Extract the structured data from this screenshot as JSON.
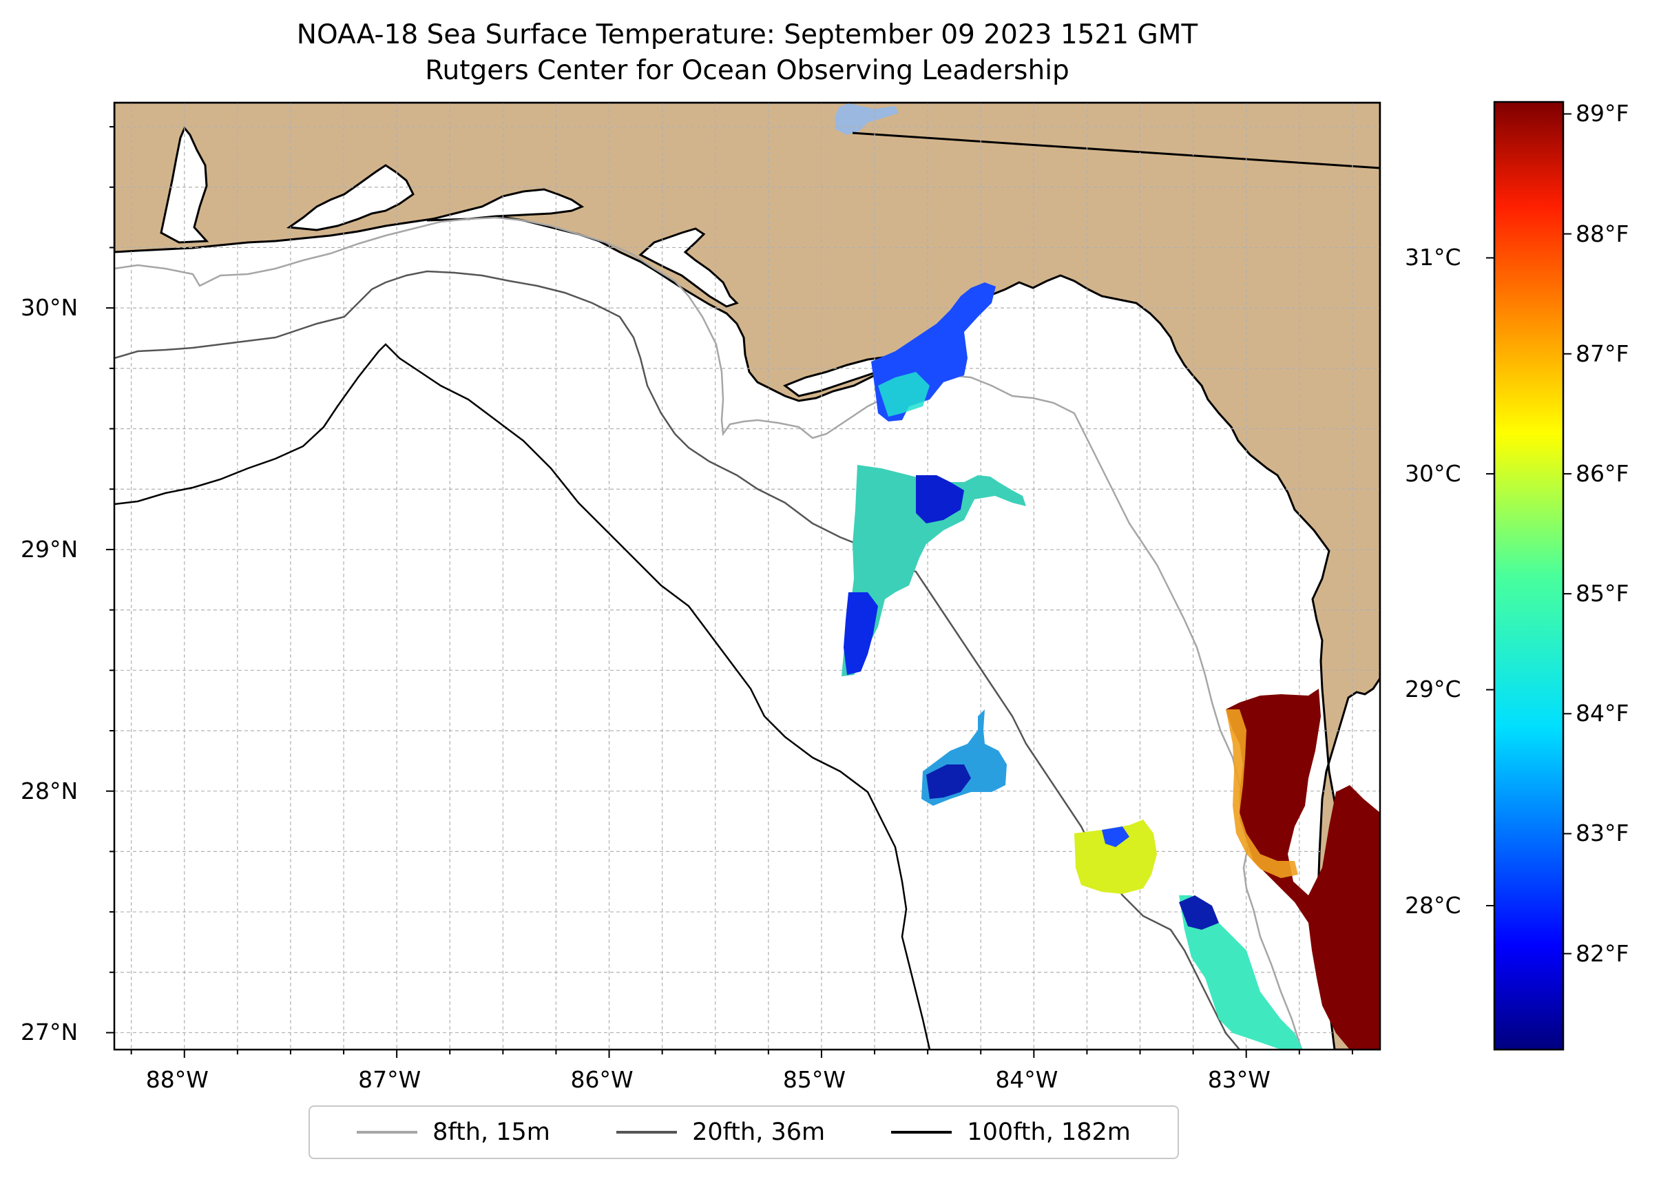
{
  "title": {
    "line1": "NOAA-18 Sea Surface Temperature: September 09 2023 1521 GMT",
    "line2": "Rutgers Center for Ocean Observing Leadership"
  },
  "map": {
    "lon_range": [
      -88.33,
      -82.37
    ],
    "lat_range": [
      26.93,
      30.85
    ],
    "longitude_labels": [
      "88°W",
      "87°W",
      "86°W",
      "85°W",
      "84°W",
      "83°W"
    ],
    "longitude_values": [
      -88,
      -87,
      -86,
      -85,
      -84,
      -83
    ],
    "latitude_labels": [
      "27°N",
      "28°N",
      "29°N",
      "30°N"
    ],
    "latitude_values": [
      27,
      28,
      29,
      30
    ],
    "colors": {
      "land": "#d2b48c",
      "ocean": "#ffffff",
      "grid": "#b0b0b0",
      "lake": "#9ab8e0"
    }
  },
  "colorbar": {
    "colormap": "jet",
    "fahrenheit_range": [
      81.2,
      89.1
    ],
    "fahrenheit_labels": [
      "82°F",
      "83°F",
      "84°F",
      "85°F",
      "86°F",
      "87°F",
      "88°F",
      "89°F"
    ],
    "fahrenheit_values": [
      82,
      83,
      84,
      85,
      86,
      87,
      88,
      89
    ],
    "celsius_labels": [
      "28°C",
      "29°C",
      "30°C",
      "31°C"
    ],
    "celsius_values": [
      28,
      29,
      30,
      31
    ]
  },
  "legend": {
    "items": [
      {
        "label": "8fth, 15m",
        "color": "#a6a6a6"
      },
      {
        "label": "20fth, 36m",
        "color": "#555555"
      },
      {
        "label": "100fth, 182m",
        "color": "#000000"
      }
    ]
  }
}
